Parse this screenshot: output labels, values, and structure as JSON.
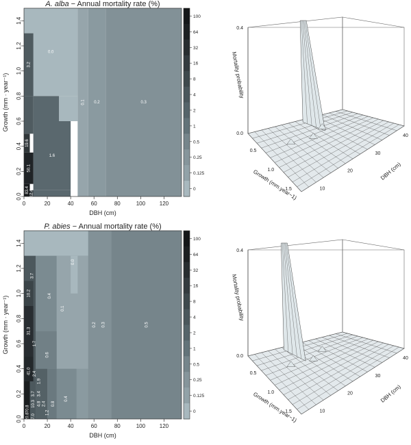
{
  "chart_data": [
    {
      "type": "heatmap",
      "title_species": "A. alba",
      "title_rest": " − Annual mortality rate (%)",
      "xlabel": "DBH (cm)",
      "ylabel": "Growth (mm · year⁻¹)",
      "xlim": [
        0,
        135
      ],
      "ylim": [
        0,
        1.5
      ],
      "x_ticks": [
        "0",
        "20",
        "40",
        "60",
        "80",
        "100",
        "120"
      ],
      "y_ticks": [
        "0.0",
        "0.2",
        "0.4",
        "0.6",
        "0.8",
        "1.0",
        "1.2",
        "1.4"
      ],
      "colorbar_ticks": [
        "100",
        "64",
        "32",
        "16",
        "8",
        "4",
        "2",
        "1",
        "0.5",
        "0.25",
        "0.125",
        "0"
      ],
      "regions": [
        {
          "x0": 0,
          "x1": 46,
          "y0": 0.8,
          "y1": 1.5,
          "value": 0.0,
          "label": "0.0"
        },
        {
          "x0": 46,
          "x1": 55,
          "y0": 0,
          "y1": 1.5,
          "value": 0.1,
          "label": "0.1"
        },
        {
          "x0": 55,
          "x1": 70,
          "y0": 0,
          "y1": 1.5,
          "value": 0.2,
          "label": "0.2"
        },
        {
          "x0": 70,
          "x1": 135,
          "y0": 0,
          "y1": 1.5,
          "value": 0.3,
          "label": "0.3"
        },
        {
          "x0": 30,
          "x1": 46,
          "y0": 0.6,
          "y1": 0.8,
          "value": 0.0,
          "label": ""
        },
        {
          "x0": 8,
          "x1": 30,
          "y0": 0.6,
          "y1": 0.8,
          "value": 1.6,
          "label": ""
        },
        {
          "x0": 8,
          "x1": 40,
          "y0": 0.05,
          "y1": 0.6,
          "value": 1.6,
          "label": "1.6"
        },
        {
          "x0": 5,
          "x1": 40,
          "y0": 0,
          "y1": 0.05,
          "value": 1.6,
          "label": ""
        },
        {
          "x0": 0,
          "x1": 8,
          "y0": 0.8,
          "y1": 1.3,
          "value": 3.2,
          "label": "3.2"
        },
        {
          "x0": 0,
          "x1": 8,
          "y0": 0.5,
          "y1": 0.8,
          "value": 3.2,
          "label": ""
        },
        {
          "x0": 0,
          "x1": 5,
          "y0": 0.35,
          "y1": 0.5,
          "value": 19.6,
          "label": "19.6"
        },
        {
          "x0": 0,
          "x1": 8,
          "y0": 0.1,
          "y1": 0.35,
          "value": 50.1,
          "label": "50.1"
        },
        {
          "x0": 0,
          "x1": 5,
          "y0": 0,
          "y1": 0.1,
          "value": 83.4,
          "label": "83.4"
        },
        {
          "x0": 5,
          "x1": 8,
          "y0": 0,
          "y1": 0.05,
          "value": 12.4,
          "label": "12.4"
        }
      ],
      "surface": {
        "zlabel": "Mortality probability",
        "xlabel": "Growth (mm.year−1)",
        "ylabel": "DBH (cm)",
        "z_ticks": [
          "0.0",
          "0.4"
        ],
        "growth_ticks": [
          "0.5",
          "1.0",
          "1.5"
        ],
        "dbh_ticks": [
          "10",
          "20",
          "30",
          "40"
        ]
      }
    },
    {
      "type": "heatmap",
      "title_species": "P. abies",
      "title_rest": " − Annual mortality rate (%)",
      "xlabel": "DBH (cm)",
      "ylabel": "Growth (mm · year⁻¹)",
      "xlim": [
        0,
        135
      ],
      "ylim": [
        0,
        1.5
      ],
      "x_ticks": [
        "0",
        "20",
        "40",
        "60",
        "80",
        "100",
        "120"
      ],
      "y_ticks": [
        "0.0",
        "0.2",
        "0.4",
        "0.6",
        "0.8",
        "1.0",
        "1.2",
        "1.4"
      ],
      "colorbar_ticks": [
        "100",
        "64",
        "32",
        "16",
        "8",
        "4",
        "2",
        "1",
        "0.5",
        "0.25",
        "0.125",
        "0"
      ],
      "regions": [
        {
          "x0": 0,
          "x1": 135,
          "y0": 0,
          "y1": 1.5,
          "value": 0.5,
          "label": ""
        },
        {
          "x0": 0,
          "x1": 75,
          "y0": 0,
          "y1": 1.5,
          "value": 0.3,
          "label": ""
        },
        {
          "x0": 0,
          "x1": 55,
          "y0": 0,
          "y1": 1.5,
          "value": 0.2,
          "label": ""
        },
        {
          "x0": 0,
          "x1": 55,
          "y0": 1.3,
          "y1": 1.5,
          "value": 0.0,
          "label": ""
        },
        {
          "x0": 0,
          "x1": 10,
          "y0": 0,
          "y1": 1.3,
          "value": 3.7,
          "label": ""
        },
        {
          "x0": 0,
          "x1": 8,
          "y0": 0.9,
          "y1": 1.1,
          "value": 10.2,
          "label": ""
        },
        {
          "x0": 0,
          "x1": 8,
          "y0": 0.5,
          "y1": 0.9,
          "value": 31.3,
          "label": ""
        },
        {
          "x0": 0,
          "x1": 8,
          "y0": 0.3,
          "y1": 0.5,
          "value": 41.0,
          "label": ""
        },
        {
          "x0": 0,
          "x1": 5,
          "y0": 0,
          "y1": 0.3,
          "value": 70.8,
          "label": ""
        },
        {
          "x0": 10,
          "x1": 28,
          "y0": 0.7,
          "y1": 1.3,
          "value": 0.4,
          "label": ""
        },
        {
          "x0": 28,
          "x1": 55,
          "y0": 0.4,
          "y1": 1.3,
          "value": 0.1,
          "label": ""
        },
        {
          "x0": 40,
          "x1": 46,
          "y0": 1.0,
          "y1": 1.3,
          "value": 0.0,
          "label": ""
        },
        {
          "x0": 10,
          "x1": 28,
          "y0": 0.4,
          "y1": 0.7,
          "value": 0.6,
          "label": ""
        },
        {
          "x0": 28,
          "x1": 45,
          "y0": 0,
          "y1": 0.4,
          "value": 0.4,
          "label": ""
        },
        {
          "x0": 10,
          "x1": 20,
          "y0": 0,
          "y1": 0.4,
          "value": 2.4,
          "label": ""
        },
        {
          "x0": 20,
          "x1": 28,
          "y0": 0,
          "y1": 0.4,
          "value": 0.8,
          "label": ""
        }
      ],
      "cell_labels": [
        {
          "x": 7,
          "y": 1.14,
          "label": "3.7"
        },
        {
          "x": 22,
          "y": 0.98,
          "label": "0.4"
        },
        {
          "x": 42,
          "y": 1.25,
          "label": "0.0"
        },
        {
          "x": 33,
          "y": 0.88,
          "label": "0.1"
        },
        {
          "x": 60,
          "y": 0.75,
          "label": "0.2"
        },
        {
          "x": 68,
          "y": 0.75,
          "label": "0.3"
        },
        {
          "x": 105,
          "y": 0.75,
          "label": "0.5"
        },
        {
          "x": 4,
          "y": 1.0,
          "label": "10.2"
        },
        {
          "x": 4,
          "y": 0.7,
          "label": "31.3"
        },
        {
          "x": 4,
          "y": 0.38,
          "label": "41.0"
        },
        {
          "x": 9,
          "y": 0.6,
          "label": "1.7"
        },
        {
          "x": 20,
          "y": 0.51,
          "label": "0.6"
        },
        {
          "x": 9,
          "y": 0.36,
          "label": "2.4"
        },
        {
          "x": 13,
          "y": 0.3,
          "label": "1.9"
        },
        {
          "x": 8,
          "y": 0.2,
          "label": "3.7"
        },
        {
          "x": 13,
          "y": 0.2,
          "label": "3.4"
        },
        {
          "x": 8,
          "y": 0.12,
          "label": "10.3"
        },
        {
          "x": 13,
          "y": 0.12,
          "label": "4.8"
        },
        {
          "x": 17,
          "y": 0.12,
          "label": "2.4"
        },
        {
          "x": 20,
          "y": 0.05,
          "label": "1.2"
        },
        {
          "x": 25,
          "y": 0.12,
          "label": "0.8"
        },
        {
          "x": 36,
          "y": 0.16,
          "label": "0.4"
        },
        {
          "x": 3,
          "y": 0.08,
          "label": "70.8"
        },
        {
          "x": 3,
          "y": 0.02,
          "label": "20.8"
        },
        {
          "x": 8,
          "y": 0.02,
          "label": "7.0"
        }
      ],
      "surface": {
        "zlabel": "Mortality probability",
        "xlabel": "Growth (mm.year−1)",
        "ylabel": "DBH (cm)",
        "z_ticks": [
          "0.0",
          "0.4"
        ],
        "growth_ticks": [
          "0.5",
          "1.0",
          "1.5"
        ],
        "dbh_ticks": [
          "10",
          "20",
          "30",
          "40"
        ]
      }
    }
  ]
}
